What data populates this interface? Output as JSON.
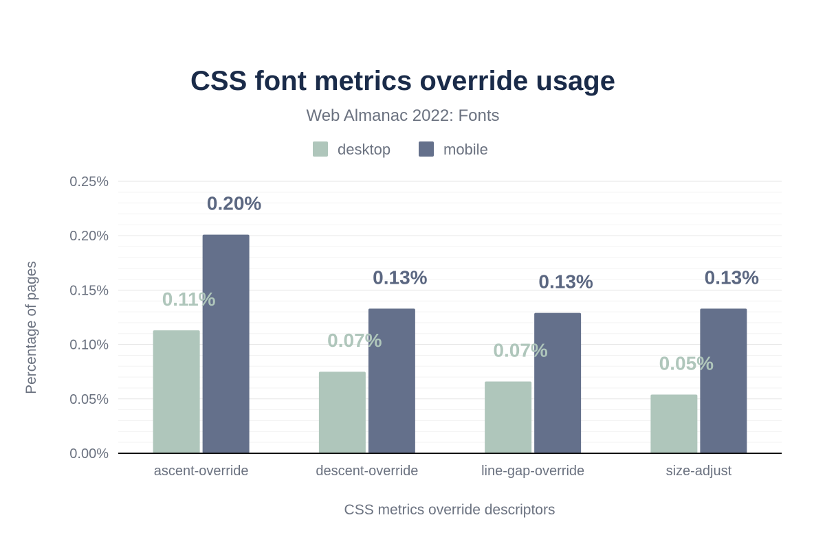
{
  "colors": {
    "title": "#1a2b49",
    "text": "#6b7280",
    "grid": "#eeeeee",
    "axis": "#111111",
    "desktop": "#afc6bb",
    "mobile": "#64708b",
    "desktop_label": "#afc6bb",
    "mobile_label": "#5b6781"
  },
  "chart_data": {
    "type": "bar",
    "title": "CSS font metrics override usage",
    "subtitle": "Web Almanac 2022: Fonts",
    "xlabel": "CSS metrics override descriptors",
    "ylabel": "Percentage of pages",
    "ylim": [
      0,
      0.25
    ],
    "yticks": [
      0,
      0.05,
      0.1,
      0.15,
      0.2,
      0.25
    ],
    "ytick_labels": [
      "0.00%",
      "0.05%",
      "0.10%",
      "0.15%",
      "0.20%",
      "0.25%"
    ],
    "grid": true,
    "legend_position": "top-center",
    "categories": [
      "ascent-override",
      "descent-override",
      "line-gap-override",
      "size-adjust"
    ],
    "series": [
      {
        "name": "desktop",
        "values": [
          0.113,
          0.075,
          0.066,
          0.054
        ],
        "labels": [
          "0.11%",
          "0.07%",
          "0.07%",
          "0.05%"
        ]
      },
      {
        "name": "mobile",
        "values": [
          0.201,
          0.133,
          0.129,
          0.133
        ],
        "labels": [
          "0.20%",
          "0.13%",
          "0.13%",
          "0.13%"
        ]
      }
    ]
  }
}
